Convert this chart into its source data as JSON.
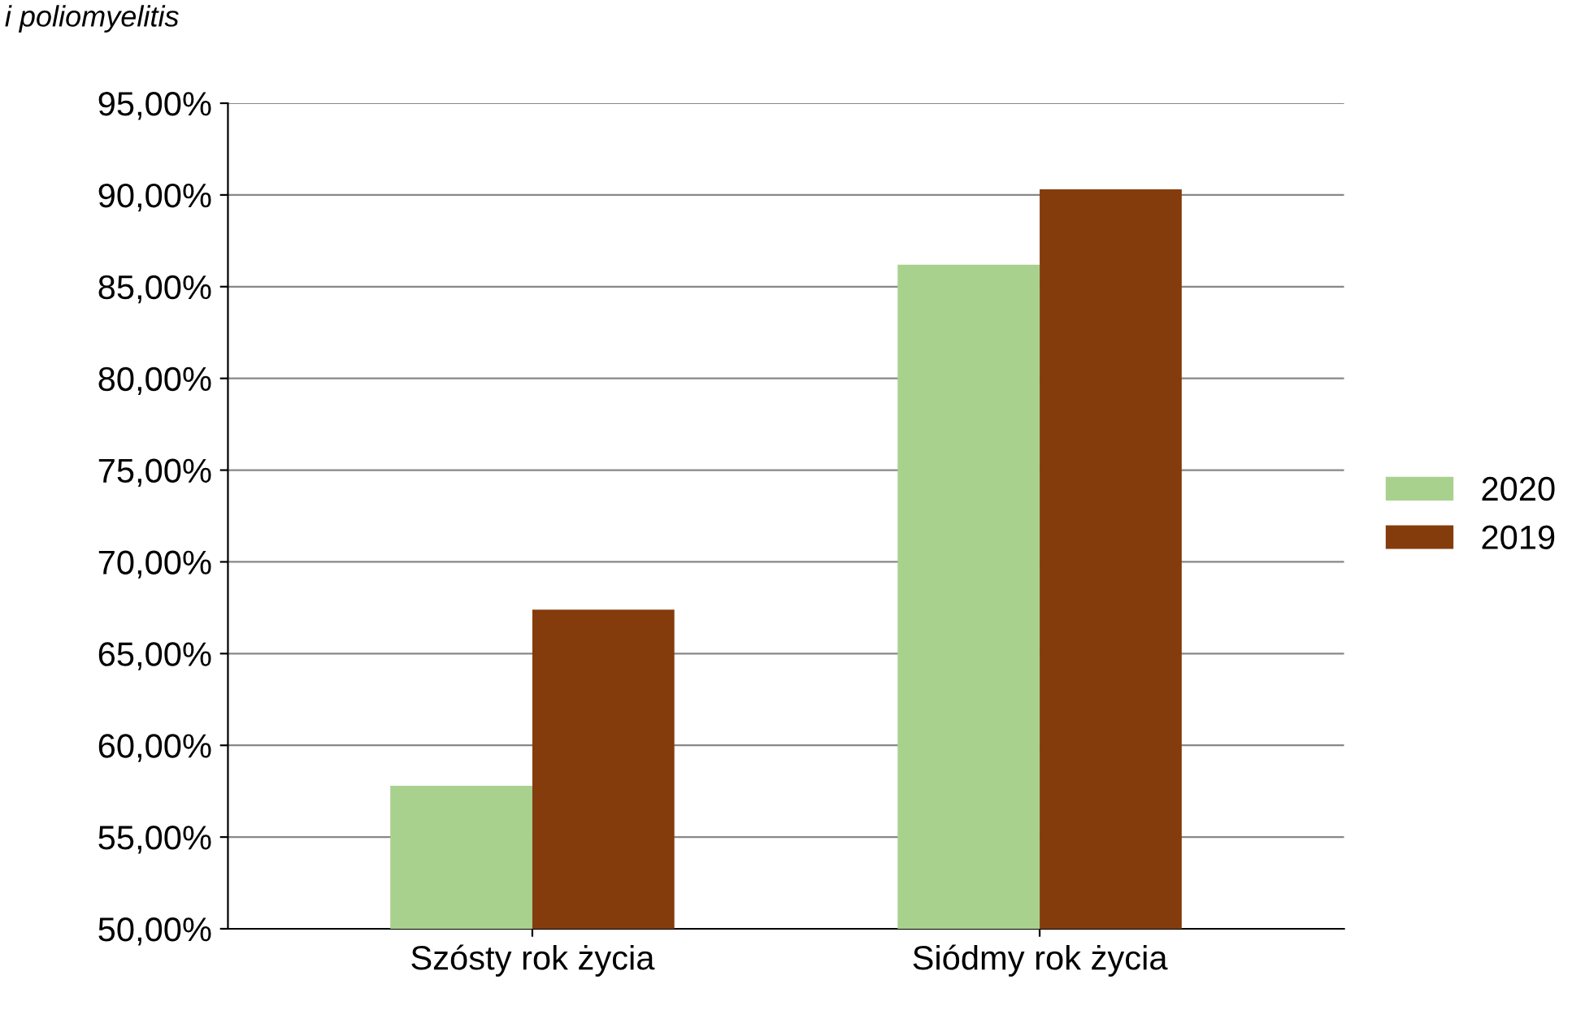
{
  "chart_data": {
    "type": "bar",
    "title": "i poliomyelitis",
    "categories": [
      "Szósty rok życia",
      "Siódmy rok życia"
    ],
    "series": [
      {
        "name": "2020",
        "color": "#a9d18e",
        "values": [
          57.8,
          86.2
        ]
      },
      {
        "name": "2019",
        "color": "#843c0c",
        "values": [
          67.4,
          90.3
        ]
      }
    ],
    "ylim": [
      50,
      95
    ],
    "yticks": [
      {
        "value": 50,
        "label": "50,00%"
      },
      {
        "value": 55,
        "label": "55,00%"
      },
      {
        "value": 60,
        "label": "60,00%"
      },
      {
        "value": 65,
        "label": "65,00%"
      },
      {
        "value": 70,
        "label": "70,00%"
      },
      {
        "value": 75,
        "label": "75,00%"
      },
      {
        "value": 80,
        "label": "80,00%"
      },
      {
        "value": 85,
        "label": "85,00%"
      },
      {
        "value": 90,
        "label": "90,00%"
      },
      {
        "value": 95,
        "label": "95,00%"
      }
    ],
    "grid": "y",
    "legend": "right"
  }
}
